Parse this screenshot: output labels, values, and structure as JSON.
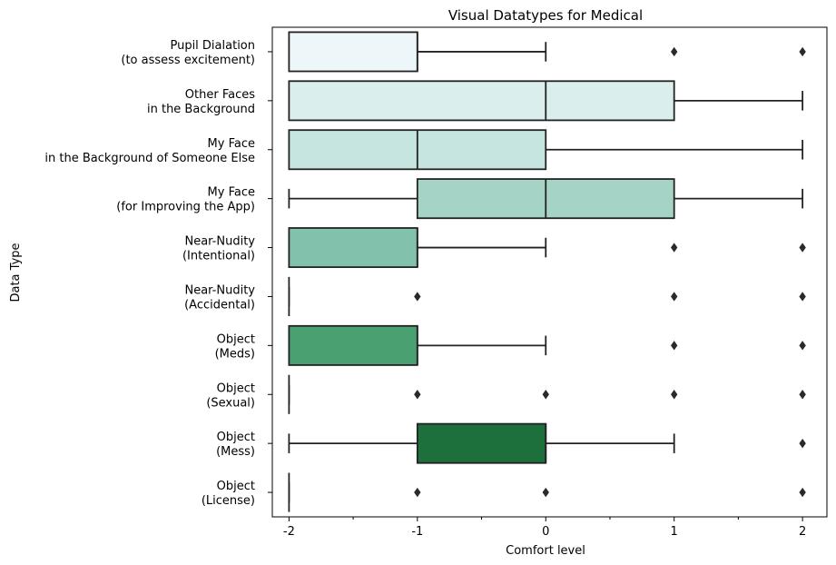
{
  "chart_data": {
    "type": "boxplot",
    "orientation": "horizontal",
    "title": "Visual Datatypes for Medical",
    "xlabel": "Comfort level",
    "ylabel": "Data Type",
    "xlim": [
      -2.13,
      2.19
    ],
    "xticks": [
      -2,
      -1,
      0,
      1,
      2
    ],
    "xtick_labels": [
      "-2",
      "-1",
      "0",
      "1",
      "2"
    ],
    "grid": false,
    "categories": [
      {
        "label_lines": [
          "Pupil Dialation",
          "(to assess excitement)"
        ],
        "color": "#edf6f9",
        "q1": -2,
        "median": -1,
        "q3": -1,
        "whisker_low": -2,
        "whisker_high": 0,
        "outliers": [
          1,
          2
        ]
      },
      {
        "label_lines": [
          "Other Faces",
          "in the Background"
        ],
        "color": "#daeeed",
        "q1": -2,
        "median": 0,
        "q3": 1,
        "whisker_low": -2,
        "whisker_high": 2,
        "outliers": []
      },
      {
        "label_lines": [
          "My Face",
          "in the Background of Someone Else"
        ],
        "color": "#c6e5e0",
        "q1": -2,
        "median": -1,
        "q3": 0,
        "whisker_low": -2,
        "whisker_high": 2,
        "outliers": []
      },
      {
        "label_lines": [
          "My Face",
          "(for Improving the App)"
        ],
        "color": "#a5d4c6",
        "q1": -1,
        "median": 0,
        "q3": 1,
        "whisker_low": -2,
        "whisker_high": 2,
        "outliers": []
      },
      {
        "label_lines": [
          "Near-Nudity",
          "(Intentional)"
        ],
        "color": "#82c1ac",
        "q1": -2,
        "median": -1,
        "q3": -1,
        "whisker_low": -2,
        "whisker_high": 0,
        "outliers": [
          1,
          2
        ]
      },
      {
        "label_lines": [
          "Near-Nudity",
          "(Accidental)"
        ],
        "color": "#66b48f",
        "q1": -2,
        "median": -2,
        "q3": -2,
        "whisker_low": -2,
        "whisker_high": -2,
        "outliers": [
          -1,
          1,
          2
        ]
      },
      {
        "label_lines": [
          "Object",
          "(Meds)"
        ],
        "color": "#4aa070",
        "q1": -2,
        "median": -1,
        "q3": -1,
        "whisker_low": -2,
        "whisker_high": 0,
        "outliers": [
          1,
          2
        ]
      },
      {
        "label_lines": [
          "Object",
          "(Sexual)"
        ],
        "color": "#36895a",
        "q1": -2,
        "median": -2,
        "q3": -2,
        "whisker_low": -2,
        "whisker_high": -2,
        "outliers": [
          -1,
          0,
          1,
          2
        ]
      },
      {
        "label_lines": [
          "Object",
          "(Mess)"
        ],
        "color": "#1d6f3b",
        "q1": -1,
        "median": 0,
        "q3": 0,
        "whisker_low": -2,
        "whisker_high": 1,
        "outliers": [
          2
        ]
      },
      {
        "label_lines": [
          "Object",
          "(License)"
        ],
        "color": "#0b5a2c",
        "q1": -2,
        "median": -2,
        "q3": -2,
        "whisker_low": -2,
        "whisker_high": -2,
        "outliers": [
          -1,
          0,
          2
        ]
      }
    ]
  }
}
